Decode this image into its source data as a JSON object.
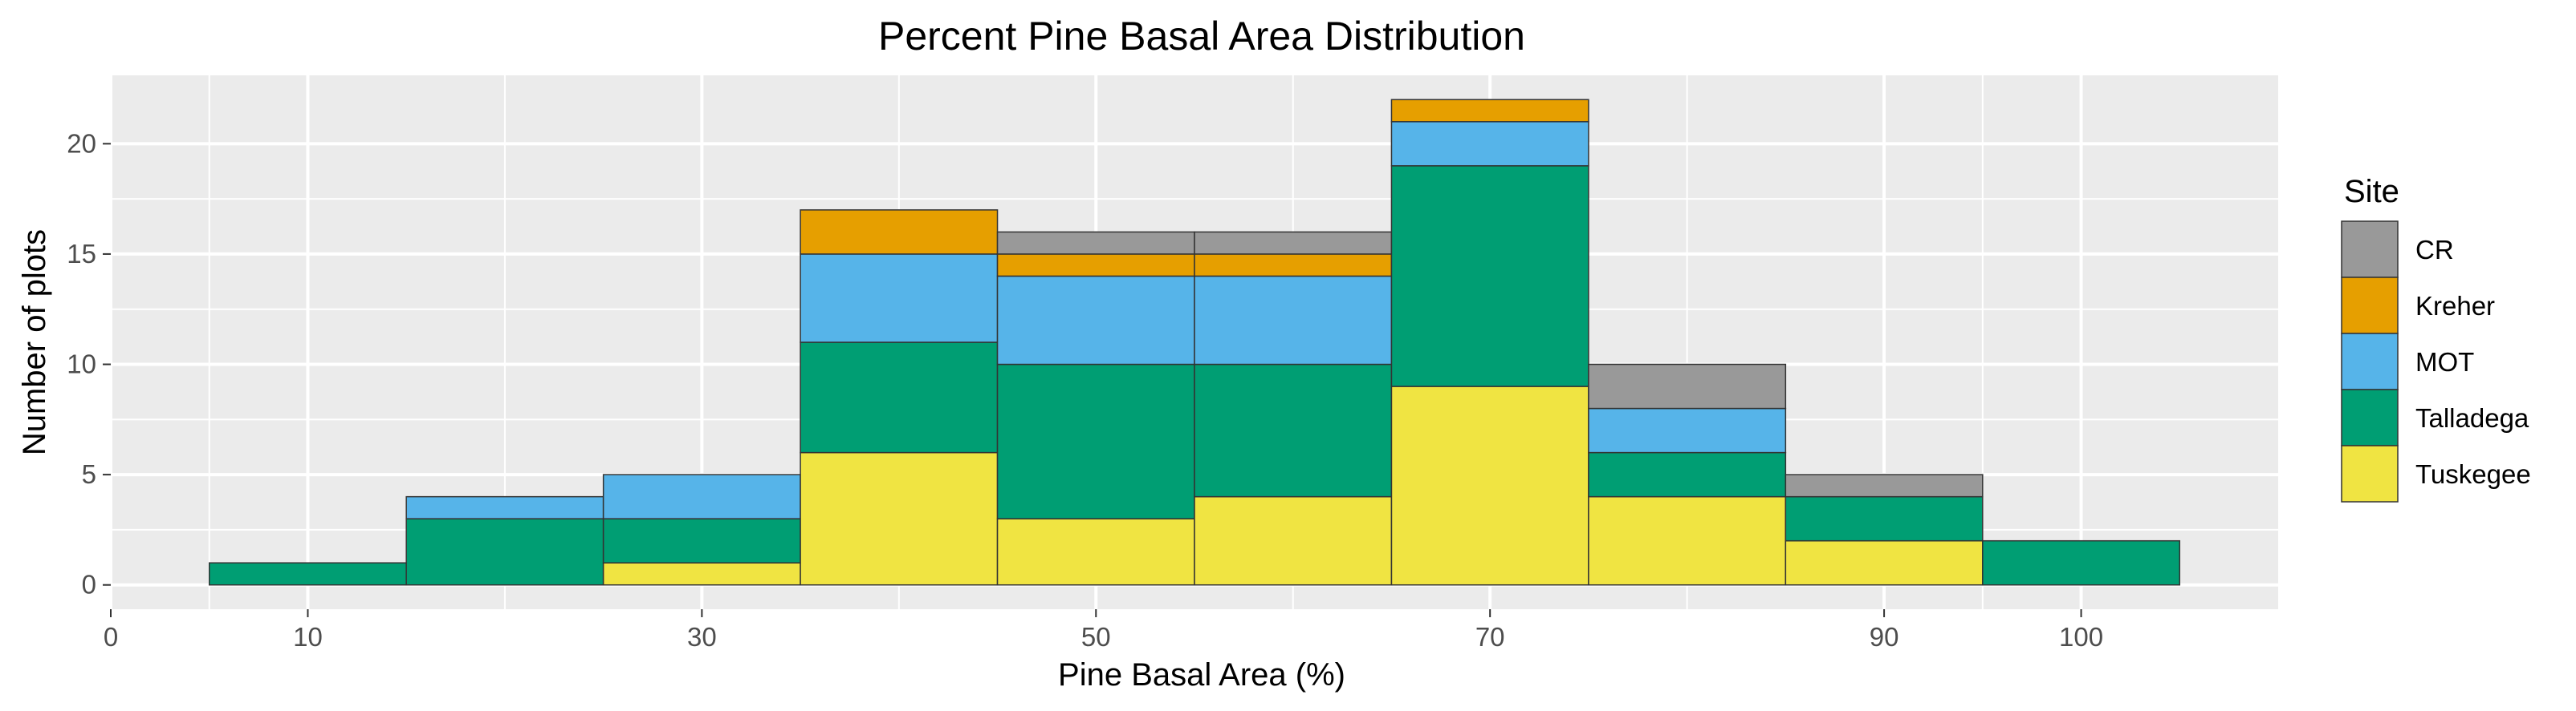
{
  "chart_data": {
    "type": "bar",
    "subtype": "stacked-histogram",
    "title": "Percent Pine Basal Area Distribution",
    "xlabel": "Pine Basal Area (%)",
    "ylabel": "Number of plots",
    "xlim": [
      0,
      110
    ],
    "ylim": [
      -1.1,
      23.1
    ],
    "x_ticks": [
      0,
      10,
      30,
      50,
      70,
      90,
      100
    ],
    "y_ticks": [
      0,
      5,
      10,
      15,
      20
    ],
    "grid": true,
    "legend_title": "Site",
    "legend_position": "right",
    "bins": [
      [
        5,
        15
      ],
      [
        15,
        25
      ],
      [
        25,
        35
      ],
      [
        35,
        45
      ],
      [
        45,
        55
      ],
      [
        55,
        65
      ],
      [
        65,
        75
      ],
      [
        75,
        85
      ],
      [
        85,
        95
      ],
      [
        95,
        105
      ]
    ],
    "series": [
      {
        "name": "Tuskegee",
        "color": "#F0E442",
        "values": [
          0,
          0,
          1,
          6,
          3,
          4,
          9,
          4,
          2,
          0
        ]
      },
      {
        "name": "Talladega",
        "color": "#009E73",
        "values": [
          1,
          3,
          2,
          5,
          7,
          6,
          10,
          2,
          2,
          2
        ]
      },
      {
        "name": "MOT",
        "color": "#56B4E9",
        "values": [
          0,
          1,
          2,
          4,
          4,
          4,
          2,
          2,
          0,
          0
        ]
      },
      {
        "name": "Kreher",
        "color": "#E69F00",
        "values": [
          0,
          0,
          0,
          2,
          1,
          1,
          1,
          0,
          0,
          0
        ]
      },
      {
        "name": "CR",
        "color": "#999999",
        "values": [
          0,
          0,
          0,
          0,
          1,
          1,
          0,
          2,
          1,
          0
        ]
      }
    ],
    "legend_order": [
      "CR",
      "Kreher",
      "MOT",
      "Talladega",
      "Tuskegee"
    ]
  }
}
